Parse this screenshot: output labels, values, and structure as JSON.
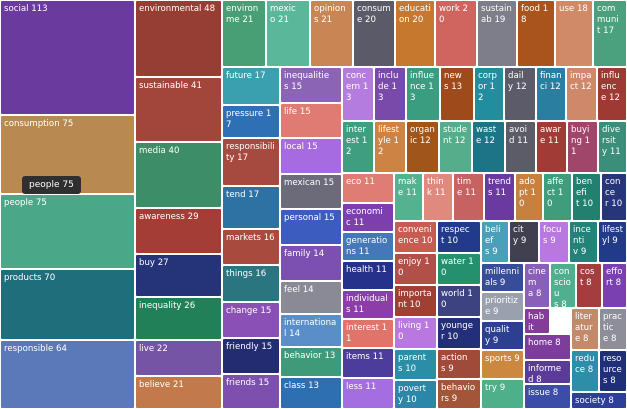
{
  "chart_data": {
    "type": "treemap",
    "tooltip": {
      "label": "people",
      "value": 75
    },
    "items": [
      {
        "label": "social",
        "value": 113,
        "color": "#6b3a9e"
      },
      {
        "label": "consumption",
        "value": 75,
        "color": "#b88a52"
      },
      {
        "label": "people",
        "value": 75,
        "color": "#4aa888"
      },
      {
        "label": "products",
        "value": 70,
        "color": "#1e6f7b"
      },
      {
        "label": "responsible",
        "value": 64,
        "color": "#5b78b8"
      },
      {
        "label": "environmental",
        "value": 48,
        "color": "#973e34"
      },
      {
        "label": "sustainable",
        "value": 41,
        "color": "#a2453a"
      },
      {
        "label": "media",
        "value": 40,
        "color": "#3e8d69"
      },
      {
        "label": "awareness",
        "value": 29,
        "color": "#a33d35"
      },
      {
        "label": "buy",
        "value": 27,
        "color": "#253478"
      },
      {
        "label": "inequality",
        "value": 26,
        "color": "#228058"
      },
      {
        "label": "live",
        "value": 22,
        "color": "#7553a5"
      },
      {
        "label": "believe",
        "value": 21,
        "color": "#c27a4c"
      },
      {
        "label": "environme",
        "value": 21,
        "color": "#489f75"
      },
      {
        "label": "mexico",
        "value": 21,
        "color": "#5bb79a"
      },
      {
        "label": "opinions",
        "value": 21,
        "color": "#c98654"
      },
      {
        "label": "consume",
        "value": 20,
        "color": "#5a5a69"
      },
      {
        "label": "education",
        "value": 20,
        "color": "#c6792e"
      },
      {
        "label": "work",
        "value": 20,
        "color": "#d06560"
      },
      {
        "label": "sustainab",
        "value": 19,
        "color": "#7e7e8a"
      },
      {
        "label": "food",
        "value": 18,
        "color": "#a9531d"
      },
      {
        "label": "use",
        "value": 18,
        "color": "#d18a68"
      },
      {
        "label": "communit",
        "value": 17,
        "color": "#4ba17e"
      },
      {
        "label": "future",
        "value": 17,
        "color": "#3aa0b0"
      },
      {
        "label": "inequalities",
        "value": 15,
        "color": "#8c64b6"
      },
      {
        "label": "concern",
        "value": 13,
        "color": "#b57ce0"
      },
      {
        "label": "include",
        "value": 13,
        "color": "#7a4aaa"
      },
      {
        "label": "influence",
        "value": 13,
        "color": "#3b9d80"
      },
      {
        "label": "news",
        "value": 13,
        "color": "#9f4a1a"
      },
      {
        "label": "corpor",
        "value": 12,
        "color": "#238da0"
      },
      {
        "label": "daily",
        "value": 12,
        "color": "#5b5b6a"
      },
      {
        "label": "financi",
        "value": 12,
        "color": "#2a7fa0"
      },
      {
        "label": "impact",
        "value": 12,
        "color": "#d0886a"
      },
      {
        "label": "influence",
        "value": 12,
        "color": "#9c3a33"
      },
      {
        "label": "pressure",
        "value": 17,
        "color": "#2f6fb3"
      },
      {
        "label": "life",
        "value": 15,
        "color": "#df7b72"
      },
      {
        "label": "interest",
        "value": 12,
        "color": "#3f9e80"
      },
      {
        "label": "lifestyle",
        "value": 12,
        "color": "#cc8343"
      },
      {
        "label": "organic",
        "value": 12,
        "color": "#a0551a"
      },
      {
        "label": "student",
        "value": 12,
        "color": "#55ad8c"
      },
      {
        "label": "waste",
        "value": 12,
        "color": "#1d7486"
      },
      {
        "label": "avoid",
        "value": 11,
        "color": "#5c5c69"
      },
      {
        "label": "aware",
        "value": 11,
        "color": "#a03b35"
      },
      {
        "label": "buying",
        "value": 11,
        "color": "#a0466a"
      },
      {
        "label": "diversity",
        "value": 11,
        "color": "#3a8e7a"
      },
      {
        "label": "responsibility",
        "value": 17,
        "color": "#a64a3f"
      },
      {
        "label": "local",
        "value": 15,
        "color": "#a66be0"
      },
      {
        "label": "tend",
        "value": 17,
        "color": "#2d72a3"
      },
      {
        "label": "mexican",
        "value": 15,
        "color": "#6b6b7a"
      },
      {
        "label": "eco",
        "value": 11,
        "color": "#df7c74"
      },
      {
        "label": "economic",
        "value": 11,
        "color": "#7e3fae"
      },
      {
        "label": "make",
        "value": 11,
        "color": "#55b290"
      },
      {
        "label": "think",
        "value": 11,
        "color": "#e08a7f"
      },
      {
        "label": "time",
        "value": 11,
        "color": "#c66262"
      },
      {
        "label": "trends",
        "value": 11,
        "color": "#6b3aa0"
      },
      {
        "label": "adopt",
        "value": 10,
        "color": "#c7813f"
      },
      {
        "label": "affect",
        "value": 10,
        "color": "#3f9c7d"
      },
      {
        "label": "benefit",
        "value": 10,
        "color": "#228070"
      },
      {
        "label": "concer",
        "value": 10,
        "color": "#27357a"
      },
      {
        "label": "personal",
        "value": 15,
        "color": "#3c5cc0"
      },
      {
        "label": "markets",
        "value": 16,
        "color": "#a94a3e"
      },
      {
        "label": "generations",
        "value": 11,
        "color": "#4478b8"
      },
      {
        "label": "convenience",
        "value": 10,
        "color": "#c65d53"
      },
      {
        "label": "respect",
        "value": 10,
        "color": "#213a8a"
      },
      {
        "label": "beliefs",
        "value": 9,
        "color": "#4aa0b8"
      },
      {
        "label": "city",
        "value": 9,
        "color": "#404050"
      },
      {
        "label": "focus",
        "value": 9,
        "color": "#b978e0"
      },
      {
        "label": "incentiv",
        "value": 9,
        "color": "#21837a"
      },
      {
        "label": "lifestyl",
        "value": 9,
        "color": "#223b88"
      },
      {
        "label": "family",
        "value": 14,
        "color": "#7c50b0"
      },
      {
        "label": "health",
        "value": 11,
        "color": "#25318a"
      },
      {
        "label": "enjoy",
        "value": 10,
        "color": "#b05048"
      },
      {
        "label": "water",
        "value": 10,
        "color": "#25906e"
      },
      {
        "label": "millennials",
        "value": 9,
        "color": "#384d9a"
      },
      {
        "label": "cinema",
        "value": 8,
        "color": "#8a5fb8"
      },
      {
        "label": "conscious",
        "value": 8,
        "color": "#4fb090"
      },
      {
        "label": "cost",
        "value": 8,
        "color": "#a43d3d"
      },
      {
        "label": "effort",
        "value": 8,
        "color": "#7a3fb0"
      },
      {
        "label": "things",
        "value": 16,
        "color": "#2a7580"
      },
      {
        "label": "feel",
        "value": 14,
        "color": "#8a8a96"
      },
      {
        "label": "individuals",
        "value": 11,
        "color": "#8c3da8"
      },
      {
        "label": "important",
        "value": 10,
        "color": "#a04035"
      },
      {
        "label": "world",
        "value": 10,
        "color": "#3c4380"
      },
      {
        "label": "prioritize",
        "value": 9,
        "color": "#9aa0ae"
      },
      {
        "label": "habits",
        "value": 8,
        "color": "#843c98"
      },
      {
        "label": "literature",
        "value": 8,
        "color": "#c28a68"
      },
      {
        "label": "practice",
        "value": 8,
        "color": "#8e8e9a"
      },
      {
        "label": "change",
        "value": 15,
        "color": "#8a50b6"
      },
      {
        "label": "international",
        "value": 14,
        "color": "#5a8ec8"
      },
      {
        "label": "interest",
        "value": 11,
        "color": "#e0736a"
      },
      {
        "label": "living",
        "value": 10,
        "color": "#b878e0"
      },
      {
        "label": "younger",
        "value": 10,
        "color": "#232f78"
      },
      {
        "label": "quality",
        "value": 9,
        "color": "#2c3f90"
      },
      {
        "label": "home",
        "value": 8,
        "color": "#7e3c9c"
      },
      {
        "label": "reduce",
        "value": 8,
        "color": "#2c8ea8"
      },
      {
        "label": "resources",
        "value": 8,
        "color": "#1f2f78"
      },
      {
        "label": "friendly",
        "value": 15,
        "color": "#232c70"
      },
      {
        "label": "behavior",
        "value": 13,
        "color": "#3f9a7a"
      },
      {
        "label": "items",
        "value": 11,
        "color": "#4c3c9c"
      },
      {
        "label": "parents",
        "value": 10,
        "color": "#2a8ea6"
      },
      {
        "label": "actions",
        "value": 9,
        "color": "#a04a3a"
      },
      {
        "label": "sports",
        "value": 9,
        "color": "#cd8840"
      },
      {
        "label": "informed",
        "value": 8,
        "color": "#5a3c98"
      },
      {
        "label": "friends",
        "value": 15,
        "color": "#7d50b0"
      },
      {
        "label": "class",
        "value": 13,
        "color": "#2d6fb0"
      },
      {
        "label": "less",
        "value": 11,
        "color": "#a46de0"
      },
      {
        "label": "poverty",
        "value": 10,
        "color": "#2b86a8"
      },
      {
        "label": "behaviors",
        "value": 9,
        "color": "#a3553a"
      },
      {
        "label": "try",
        "value": 9,
        "color": "#4db08a"
      },
      {
        "label": "issue",
        "value": 8,
        "color": "#3c4da8"
      },
      {
        "label": "society",
        "value": 8,
        "color": "#2e3f9a"
      }
    ]
  }
}
